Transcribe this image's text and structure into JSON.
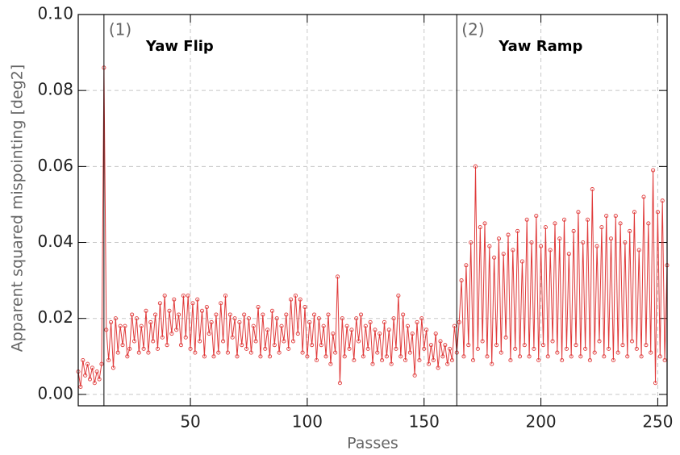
{
  "chart_data": {
    "type": "line",
    "xlabel": "Passes",
    "ylabel": "Apparent squared mispointing [deg2]",
    "xlim": [
      2,
      254
    ],
    "ylim": [
      -0.003,
      0.1
    ],
    "xticks": [
      50,
      100,
      150,
      200,
      250
    ],
    "yticks": [
      {
        "value": 0,
        "label": "0.00"
      },
      {
        "value": 0.02,
        "label": "0.02"
      },
      {
        "value": 0.04,
        "label": "0.04"
      },
      {
        "value": 0.06,
        "label": "0.06"
      },
      {
        "value": 0.08,
        "label": "0.08"
      },
      {
        "value": 0.1,
        "label": "0.10"
      }
    ],
    "grid": true,
    "events": [
      {
        "x": 13,
        "label": "(1)",
        "name": "Yaw Flip"
      },
      {
        "x": 164,
        "label": "(2)",
        "name": "Yaw Ramp"
      }
    ],
    "series": [
      {
        "color": "#e03a3a",
        "x": [
          2,
          3,
          4,
          5,
          6,
          7,
          8,
          9,
          10,
          11,
          12,
          13,
          14,
          15,
          16,
          17,
          18,
          19,
          20,
          21,
          22,
          23,
          24,
          25,
          26,
          27,
          28,
          29,
          30,
          31,
          32,
          33,
          34,
          35,
          36,
          37,
          38,
          39,
          40,
          41,
          42,
          43,
          44,
          45,
          46,
          47,
          48,
          49,
          50,
          51,
          52,
          53,
          54,
          55,
          56,
          57,
          58,
          59,
          60,
          61,
          62,
          63,
          64,
          65,
          66,
          67,
          68,
          69,
          70,
          71,
          72,
          73,
          74,
          75,
          76,
          77,
          78,
          79,
          80,
          81,
          82,
          83,
          84,
          85,
          86,
          87,
          88,
          89,
          90,
          91,
          92,
          93,
          94,
          95,
          96,
          97,
          98,
          99,
          100,
          101,
          102,
          103,
          104,
          105,
          106,
          107,
          108,
          109,
          110,
          111,
          112,
          113,
          114,
          115,
          116,
          117,
          118,
          119,
          120,
          121,
          122,
          123,
          124,
          125,
          126,
          127,
          128,
          129,
          130,
          131,
          132,
          133,
          134,
          135,
          136,
          137,
          138,
          139,
          140,
          141,
          142,
          143,
          144,
          145,
          146,
          147,
          148,
          149,
          150,
          151,
          152,
          153,
          154,
          155,
          156,
          157,
          158,
          159,
          160,
          161,
          162,
          163,
          164,
          165,
          166,
          167,
          168,
          169,
          170,
          171,
          172,
          173,
          174,
          175,
          176,
          177,
          178,
          179,
          180,
          181,
          182,
          183,
          184,
          185,
          186,
          187,
          188,
          189,
          190,
          191,
          192,
          193,
          194,
          195,
          196,
          197,
          198,
          199,
          200,
          201,
          202,
          203,
          204,
          205,
          206,
          207,
          208,
          209,
          210,
          211,
          212,
          213,
          214,
          215,
          216,
          217,
          218,
          219,
          220,
          221,
          222,
          223,
          224,
          225,
          226,
          227,
          228,
          229,
          230,
          231,
          232,
          233,
          234,
          235,
          236,
          237,
          238,
          239,
          240,
          241,
          242,
          243,
          244,
          245,
          246,
          247,
          248,
          249,
          250,
          251,
          252,
          253,
          254
        ],
        "values": [
          0.006,
          0.002,
          0.009,
          0.005,
          0.008,
          0.004,
          0.007,
          0.003,
          0.006,
          0.004,
          0.008,
          0.086,
          0.017,
          0.009,
          0.019,
          0.007,
          0.02,
          0.011,
          0.018,
          0.013,
          0.018,
          0.01,
          0.012,
          0.021,
          0.014,
          0.02,
          0.011,
          0.018,
          0.012,
          0.022,
          0.011,
          0.019,
          0.014,
          0.021,
          0.012,
          0.024,
          0.015,
          0.026,
          0.013,
          0.022,
          0.016,
          0.025,
          0.017,
          0.021,
          0.013,
          0.026,
          0.015,
          0.026,
          0.012,
          0.024,
          0.011,
          0.025,
          0.014,
          0.022,
          0.01,
          0.023,
          0.016,
          0.019,
          0.01,
          0.021,
          0.011,
          0.024,
          0.014,
          0.026,
          0.011,
          0.021,
          0.015,
          0.02,
          0.01,
          0.019,
          0.013,
          0.021,
          0.012,
          0.02,
          0.011,
          0.018,
          0.014,
          0.023,
          0.01,
          0.021,
          0.012,
          0.017,
          0.01,
          0.022,
          0.013,
          0.02,
          0.011,
          0.018,
          0.014,
          0.021,
          0.012,
          0.025,
          0.014,
          0.026,
          0.016,
          0.025,
          0.011,
          0.023,
          0.01,
          0.019,
          0.013,
          0.021,
          0.009,
          0.02,
          0.013,
          0.018,
          0.01,
          0.021,
          0.008,
          0.016,
          0.011,
          0.031,
          0.003,
          0.02,
          0.01,
          0.018,
          0.012,
          0.017,
          0.009,
          0.02,
          0.014,
          0.021,
          0.01,
          0.018,
          0.012,
          0.019,
          0.008,
          0.017,
          0.011,
          0.016,
          0.009,
          0.019,
          0.01,
          0.017,
          0.008,
          0.02,
          0.012,
          0.026,
          0.01,
          0.021,
          0.009,
          0.018,
          0.011,
          0.016,
          0.005,
          0.019,
          0.009,
          0.02,
          0.012,
          0.017,
          0.008,
          0.013,
          0.009,
          0.016,
          0.007,
          0.014,
          0.01,
          0.013,
          0.008,
          0.012,
          0.009,
          0.018,
          0.011,
          0.019,
          0.03,
          0.01,
          0.034,
          0.013,
          0.04,
          0.009,
          0.06,
          0.012,
          0.044,
          0.014,
          0.045,
          0.01,
          0.039,
          0.008,
          0.036,
          0.013,
          0.041,
          0.011,
          0.037,
          0.015,
          0.042,
          0.009,
          0.038,
          0.012,
          0.043,
          0.01,
          0.035,
          0.013,
          0.046,
          0.01,
          0.04,
          0.012,
          0.047,
          0.009,
          0.039,
          0.013,
          0.044,
          0.01,
          0.038,
          0.014,
          0.045,
          0.011,
          0.041,
          0.009,
          0.046,
          0.012,
          0.037,
          0.01,
          0.043,
          0.013,
          0.048,
          0.01,
          0.04,
          0.012,
          0.046,
          0.009,
          0.054,
          0.011,
          0.039,
          0.014,
          0.044,
          0.01,
          0.047,
          0.012,
          0.041,
          0.009,
          0.047,
          0.011,
          0.045,
          0.013,
          0.04,
          0.01,
          0.043,
          0.014,
          0.048,
          0.012,
          0.038,
          0.01,
          0.052,
          0.013,
          0.045,
          0.011,
          0.059,
          0.003,
          0.048,
          0.01,
          0.051,
          0.009,
          0.034
        ]
      }
    ]
  }
}
